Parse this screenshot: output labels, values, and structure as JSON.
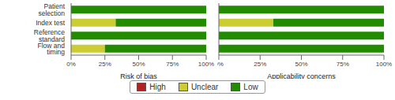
{
  "chart_data": [
    {
      "type": "bar",
      "orientation": "horizontal",
      "stacked": true,
      "categories": [
        "Patient selection",
        "Index test",
        "Reference standard",
        "Flow and timing"
      ],
      "series": [
        {
          "name": "High",
          "color": "#B22222",
          "values": [
            0,
            0,
            0,
            0
          ]
        },
        {
          "name": "Unclear",
          "color": "#CCCC33",
          "values": [
            0,
            33,
            0,
            25
          ]
        },
        {
          "name": "Low",
          "color": "#228B00",
          "values": [
            100,
            67,
            100,
            75
          ]
        }
      ],
      "xlabel": "Risk of bias",
      "xlim": [
        0,
        100
      ],
      "xticks": [
        {
          "value": 0,
          "label": "0%"
        },
        {
          "value": 25,
          "label": "25%"
        },
        {
          "value": 50,
          "label": "50%"
        },
        {
          "value": 75,
          "label": "75%"
        },
        {
          "value": 100,
          "label": "100%"
        }
      ],
      "legend": "bottom"
    },
    {
      "type": "bar",
      "orientation": "horizontal",
      "stacked": true,
      "categories": [
        "Patient selection",
        "Index test",
        "Reference standard",
        "Flow and timing"
      ],
      "series": [
        {
          "name": "High",
          "color": "#B22222",
          "values": [
            0,
            0,
            0,
            0
          ]
        },
        {
          "name": "Unclear",
          "color": "#CCCC33",
          "values": [
            0,
            33,
            0,
            0
          ]
        },
        {
          "name": "Low",
          "color": "#228B00",
          "values": [
            100,
            67,
            100,
            100
          ]
        }
      ],
      "xlabel": "Applicability concerns",
      "xlim": [
        0,
        100
      ],
      "xticks": [
        {
          "value": 0,
          "label": "0%"
        },
        {
          "value": 25,
          "label": "25%"
        },
        {
          "value": 50,
          "label": "50%"
        },
        {
          "value": 75,
          "label": "75%"
        },
        {
          "value": 100,
          "label": "100%"
        }
      ],
      "tick_labels": "x"
    }
  ]
}
